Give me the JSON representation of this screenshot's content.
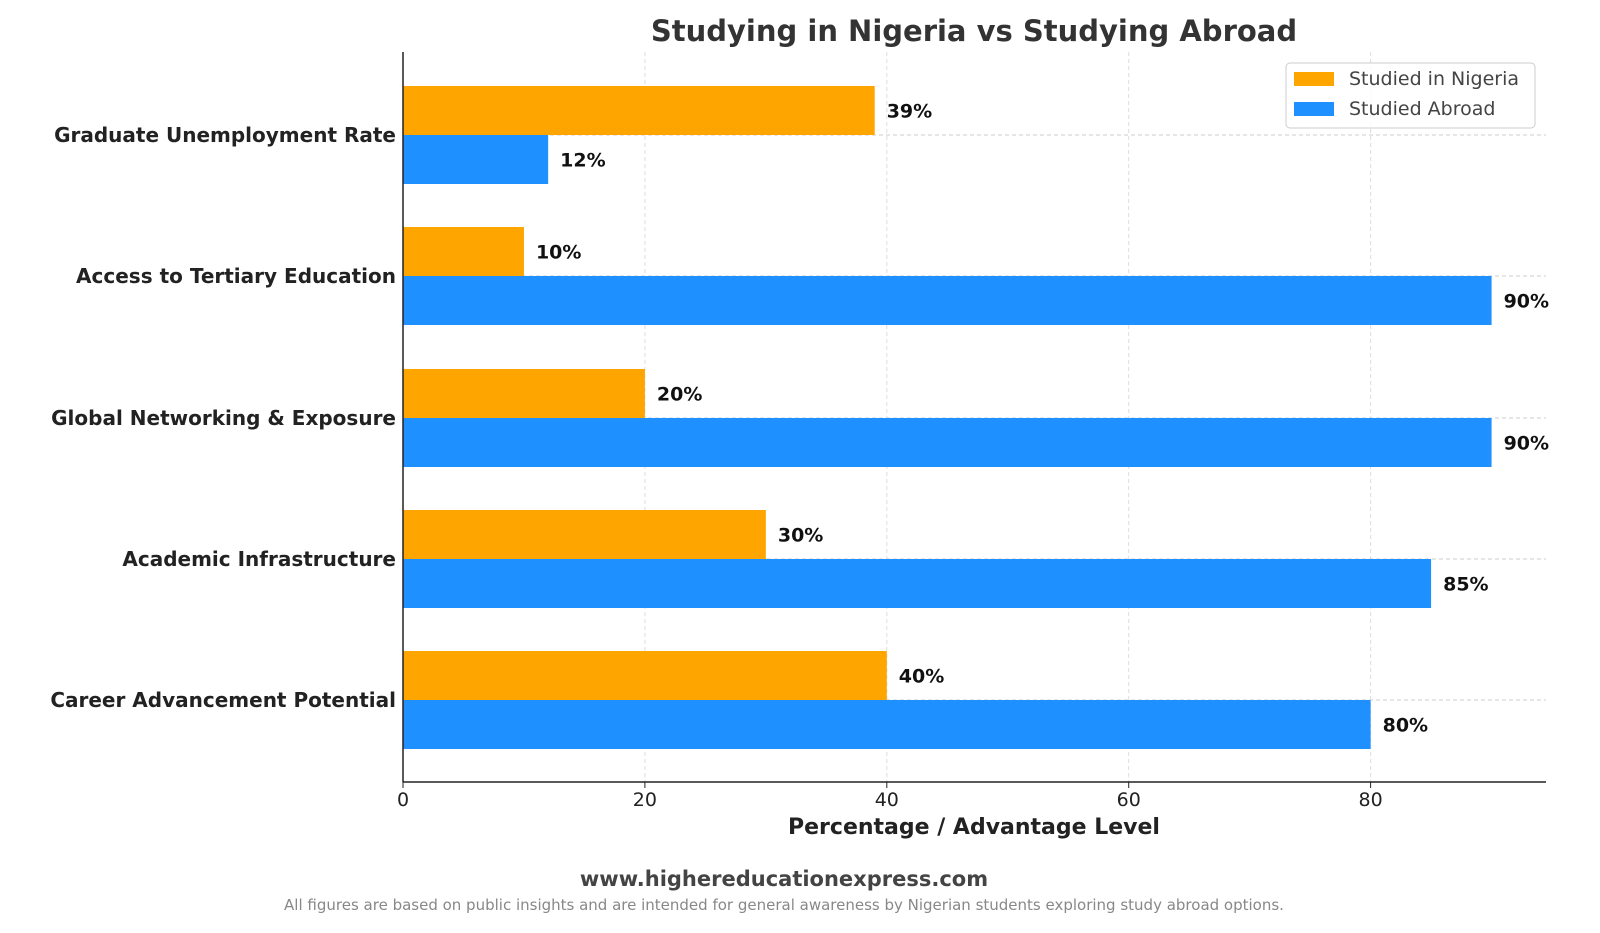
{
  "chart_data": {
    "type": "bar",
    "orientation": "horizontal",
    "title": "Studying in Nigeria vs Studying Abroad",
    "xlabel": "Percentage / Advantage Level",
    "ylabel": "",
    "categories": [
      "Graduate Unemployment Rate",
      "Access to Tertiary Education",
      "Global Networking & Exposure",
      "Academic Infrastructure",
      "Career Advancement Potential"
    ],
    "series": [
      {
        "name": "Studied in Nigeria",
        "color": "#FFA500",
        "values": [
          39,
          10,
          20,
          30,
          40
        ]
      },
      {
        "name": "Studied Abroad",
        "color": "#1E90FF",
        "values": [
          12,
          90,
          90,
          85,
          80
        ]
      }
    ],
    "data_label_suffix": "%",
    "xlim": [
      0,
      94.5
    ],
    "xticks": [
      0,
      20,
      40,
      60,
      80
    ],
    "grid": true,
    "legend_position": "top-right"
  },
  "footer": {
    "website": "www.highereducationexpress.com",
    "note": "All figures are based on public insights and are intended for general awareness by Nigerian students exploring study abroad options."
  }
}
